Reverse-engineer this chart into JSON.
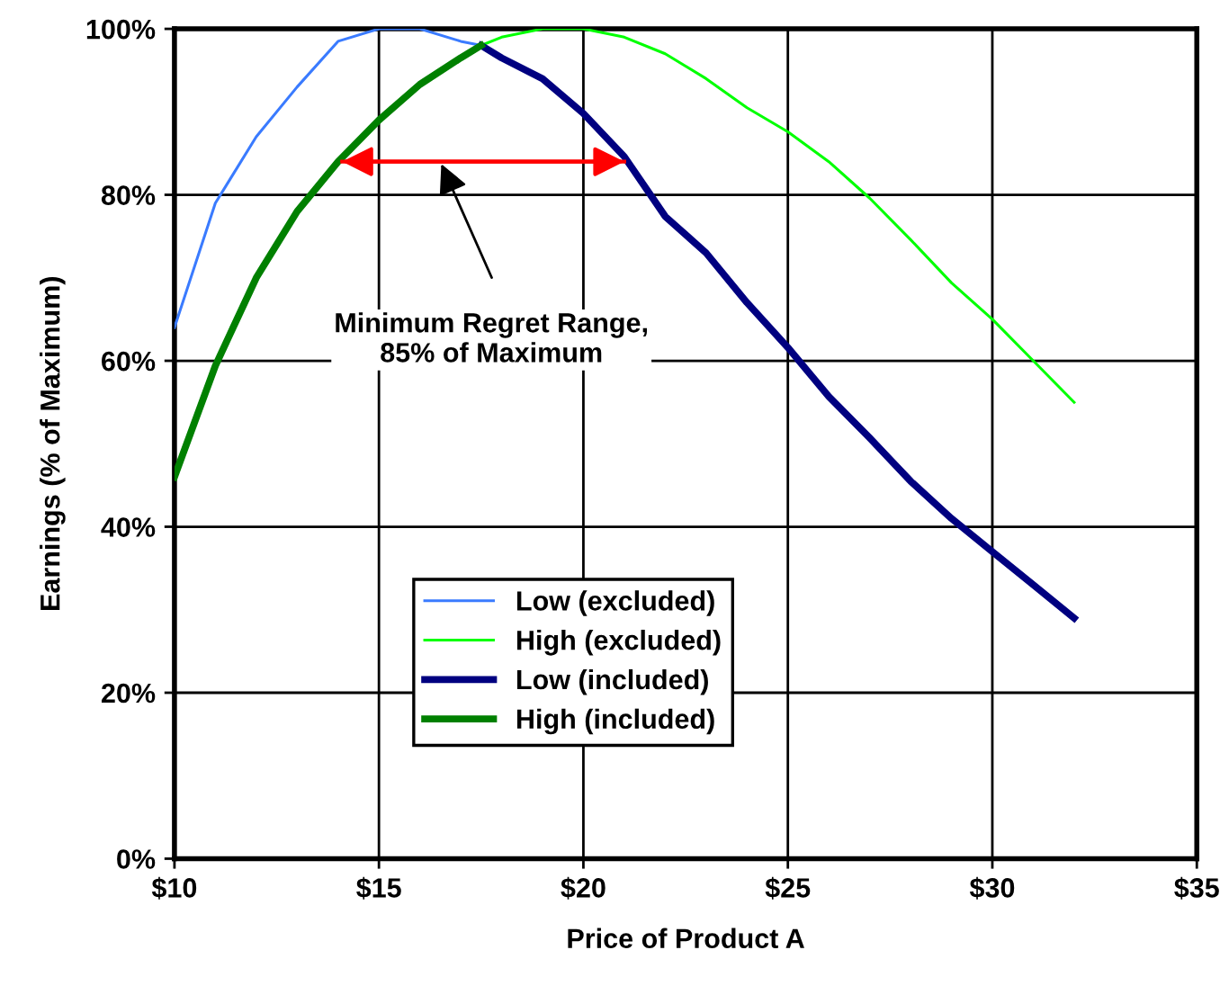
{
  "chart_data": {
    "type": "line",
    "xlabel": "Price of Product A",
    "ylabel": "Earnings (% of Maximum)",
    "xlim": [
      10,
      35
    ],
    "ylim": [
      0,
      100
    ],
    "xticks": [
      {
        "value": 10,
        "label": "$10"
      },
      {
        "value": 15,
        "label": "$15"
      },
      {
        "value": 20,
        "label": "$20"
      },
      {
        "value": 25,
        "label": "$25"
      },
      {
        "value": 30,
        "label": "$30"
      },
      {
        "value": 35,
        "label": "$35"
      }
    ],
    "yticks": [
      {
        "value": 0,
        "label": "0%"
      },
      {
        "value": 20,
        "label": "20%"
      },
      {
        "value": 40,
        "label": "40%"
      },
      {
        "value": 60,
        "label": "60%"
      },
      {
        "value": 80,
        "label": "80%"
      },
      {
        "value": 100,
        "label": "100%"
      }
    ],
    "grid": true,
    "legend": "bottom",
    "marker": "none",
    "line_style": "solid",
    "series": [
      {
        "name": "Low (excluded)",
        "color": "#3a7bff",
        "x": [
          10,
          11,
          12,
          13,
          14,
          15,
          16,
          17,
          17.5
        ],
        "values": [
          64,
          79,
          87,
          93,
          98.5,
          100,
          100,
          98.5,
          98
        ]
      },
      {
        "name": "High (excluded)",
        "color": "#00ff00",
        "x": [
          17.5,
          18,
          19,
          20,
          21,
          22,
          23,
          24,
          25,
          26,
          27,
          28,
          29,
          30,
          31,
          32
        ],
        "values": [
          98,
          99,
          100,
          100,
          99,
          97,
          94,
          90.5,
          87.6,
          84,
          79.6,
          74.6,
          69.4,
          65,
          60,
          55
        ]
      },
      {
        "name": "Low (included)",
        "color": "#000080",
        "x": [
          17.5,
          18,
          19,
          20,
          21,
          22,
          23,
          24,
          25,
          26,
          27,
          28,
          29,
          30,
          31,
          32
        ],
        "values": [
          98,
          96.5,
          94,
          89.8,
          84.6,
          77.4,
          73,
          67,
          61.6,
          55.7,
          50.7,
          45.5,
          41,
          37,
          33,
          29
        ]
      },
      {
        "name": "High (included)",
        "color": "#008000",
        "x": [
          10,
          11,
          12,
          13,
          14,
          15,
          16,
          17,
          17.5
        ],
        "values": [
          46,
          59.4,
          70,
          78,
          84,
          89,
          93.3,
          96.5,
          98
        ]
      },
      {
        "color": "#ff0000",
        "x": [
          14.1,
          21
        ],
        "values": [
          84,
          84
        ]
      }
    ],
    "annotations": [
      {
        "text": "Minimum Regret Range,\n85% of Maximum",
        "x": 16.5,
        "y": 84
      }
    ]
  }
}
